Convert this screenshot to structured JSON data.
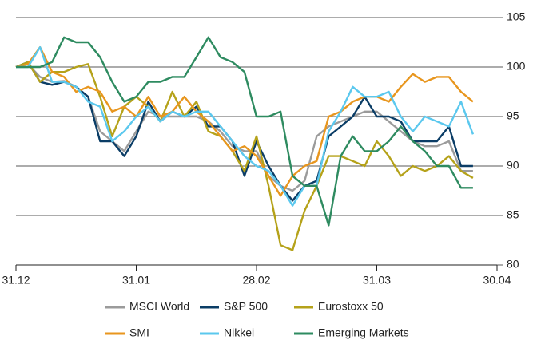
{
  "chart_data": {
    "type": "line",
    "x": [
      0,
      0.1,
      0.2,
      0.3,
      0.4,
      0.5,
      0.6,
      0.7,
      0.8,
      0.9,
      1,
      1.1,
      1.2,
      1.3,
      1.4,
      1.5,
      1.6,
      1.7,
      1.8,
      1.9,
      2,
      2.1,
      2.2,
      2.3,
      2.4,
      2.5,
      2.6,
      2.7,
      2.8,
      2.9,
      3,
      3.1,
      3.2,
      3.3,
      3.4,
      3.5,
      3.6,
      3.7,
      3.8
    ],
    "xlim": [
      0,
      4
    ],
    "xticks": [
      {
        "value": 0,
        "label": "31.12"
      },
      {
        "value": 1,
        "label": "31.01"
      },
      {
        "value": 2,
        "label": "28.02"
      },
      {
        "value": 3,
        "label": "31.03"
      },
      {
        "value": 4,
        "label": "30.04"
      }
    ],
    "ylim": [
      80,
      105
    ],
    "yticks": [
      80,
      85,
      90,
      95,
      100,
      105
    ],
    "grid": true,
    "legend": "bottom",
    "series": [
      {
        "name": "MSCI World",
        "color": "#9b9b9b",
        "values": [
          100,
          100.3,
          99,
          98.5,
          98.6,
          98,
          97,
          93.5,
          92.5,
          91.5,
          93.5,
          95.5,
          95,
          95,
          95,
          95,
          94.5,
          93.5,
          92,
          91.5,
          91.5,
          89,
          88,
          87.5,
          88.5,
          93,
          94,
          94.5,
          95,
          95.5,
          95.5,
          94.5,
          93.5,
          92.5,
          92,
          92,
          92.5,
          89.5,
          89.5
        ]
      },
      {
        "name": "S&P 500",
        "color": "#0b3d66",
        "values": [
          100,
          100.5,
          98.5,
          98.2,
          98.5,
          98,
          97,
          92.5,
          92.5,
          91,
          93,
          96.5,
          94.5,
          95.5,
          95,
          96,
          94,
          94,
          92.5,
          89,
          92.5,
          90,
          88,
          86.5,
          88,
          88.5,
          93,
          94,
          95,
          97,
          95,
          95,
          94.5,
          92.5,
          92.5,
          92.5,
          94,
          90,
          90
        ]
      },
      {
        "name": "Eurostoxx 50",
        "color": "#b5a21a",
        "values": [
          100,
          100.5,
          98.5,
          99.5,
          99.5,
          100,
          100.3,
          97,
          93,
          96,
          97,
          96,
          94.5,
          97.5,
          95,
          96.5,
          93.5,
          93,
          91.5,
          89.5,
          93,
          88,
          82,
          81.5,
          85.5,
          88,
          91,
          91,
          90.5,
          90,
          92.5,
          91,
          89,
          90,
          89.5,
          90,
          91,
          89.5,
          88.8
        ]
      },
      {
        "name": "SMI",
        "color": "#e8961e",
        "values": [
          100,
          100.3,
          102,
          99.5,
          99,
          97.5,
          98,
          97.5,
          95.5,
          96,
          95,
          97,
          95,
          95.5,
          97,
          95.5,
          94.5,
          93,
          91.5,
          92,
          91,
          89,
          87,
          89,
          90,
          90.5,
          95,
          95.5,
          96.5,
          97,
          97,
          96.5,
          98,
          99.3,
          98.5,
          99,
          99,
          97.5,
          96.5
        ]
      },
      {
        "name": "Nikkei",
        "color": "#5bc8ee",
        "values": [
          100,
          100,
          102,
          98.5,
          98.5,
          98,
          96.5,
          96,
          92.5,
          93.5,
          95,
          96,
          94.5,
          95.5,
          95,
          95.5,
          95.5,
          94,
          92.5,
          91,
          90,
          89.5,
          88,
          86,
          88,
          88,
          93.5,
          95.5,
          98,
          97,
          97,
          97.5,
          95,
          93.5,
          95,
          94.5,
          94,
          96.5,
          93.2
        ]
      },
      {
        "name": "Emerging Markets",
        "color": "#2e8b60",
        "values": [
          100,
          100,
          100,
          100.5,
          103,
          102.5,
          102.5,
          101,
          98.5,
          96.5,
          97,
          98.5,
          98.5,
          99,
          99,
          101,
          103,
          101,
          100.5,
          99.5,
          95,
          95,
          95.5,
          89,
          88,
          88,
          84,
          91,
          93,
          91.5,
          91.5,
          92.5,
          94,
          92.5,
          91.5,
          90,
          90,
          87.8,
          87.8
        ]
      }
    ]
  }
}
